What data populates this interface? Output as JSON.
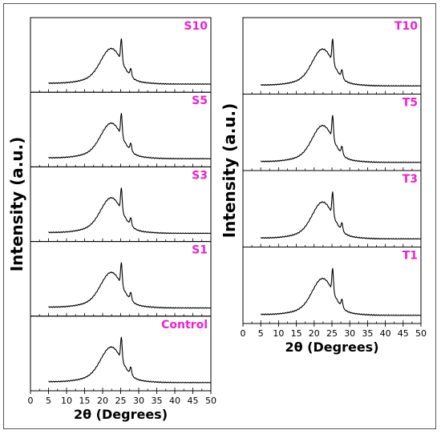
{
  "chart_data": [
    {
      "type": "line",
      "xlabel": "2θ (Degrees)",
      "ylabel": "Intensity (a.u.)",
      "xlim": [
        0,
        50
      ],
      "xticks": [
        0,
        5,
        10,
        15,
        20,
        25,
        30,
        35,
        40,
        45,
        50
      ],
      "label_color": "#ee22cc",
      "series": [
        {
          "name": "S10",
          "peak_main": 22.5,
          "peak_sharp": 25.2,
          "peak_minor": 27.8
        },
        {
          "name": "S5",
          "peak_main": 22.5,
          "peak_sharp": 25.2,
          "peak_minor": 27.8
        },
        {
          "name": "S3",
          "peak_main": 22.5,
          "peak_sharp": 25.2,
          "peak_minor": 27.8
        },
        {
          "name": "S1",
          "peak_main": 22.5,
          "peak_sharp": 25.2,
          "peak_minor": 27.8
        },
        {
          "name": "Control",
          "peak_main": 22.5,
          "peak_sharp": 25.2,
          "peak_minor": 27.8
        }
      ]
    },
    {
      "type": "line",
      "xlabel": "2θ (Degrees)",
      "ylabel": "Intensity (a.u.)",
      "xlim": [
        0,
        50
      ],
      "xticks": [
        0,
        5,
        10,
        15,
        20,
        25,
        30,
        35,
        40,
        45,
        50
      ],
      "label_color": "#ee22cc",
      "series": [
        {
          "name": "T10",
          "peak_main": 22.5,
          "peak_sharp": 25.2,
          "peak_minor": 27.8
        },
        {
          "name": "T5",
          "peak_main": 22.5,
          "peak_sharp": 25.2,
          "peak_minor": 27.8
        },
        {
          "name": "T3",
          "peak_main": 22.5,
          "peak_sharp": 25.2,
          "peak_minor": 27.8
        },
        {
          "name": "T1",
          "peak_main": 22.5,
          "peak_sharp": 25.2,
          "peak_minor": 27.8
        }
      ]
    }
  ]
}
